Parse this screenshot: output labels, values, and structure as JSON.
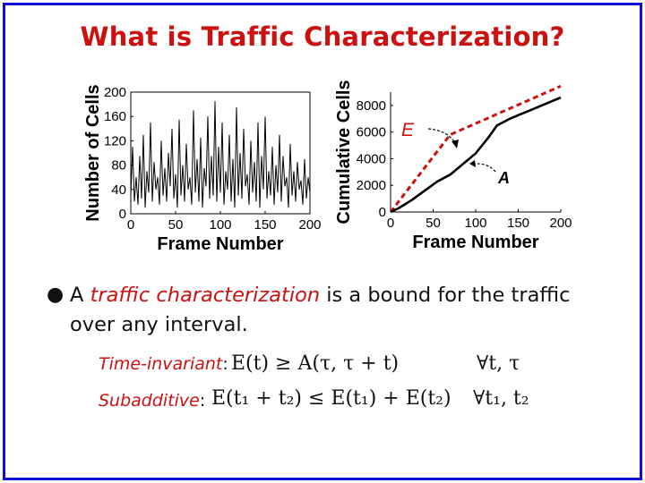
{
  "title": "What is Traffic Characterization?",
  "chart_data": [
    {
      "type": "line",
      "xlabel": "Frame Number",
      "ylabel": "Number of Cells",
      "xticks": [
        "0",
        "50",
        "100",
        "150",
        "200"
      ],
      "yticks": [
        "0",
        "40",
        "80",
        "120",
        "160",
        "200"
      ],
      "xlim": [
        0,
        200
      ],
      "ylim": [
        0,
        200
      ],
      "series": [
        {
          "color": "#000000",
          "x": [
            0,
            2,
            4,
            6,
            8,
            10,
            12,
            14,
            16,
            18,
            20,
            22,
            24,
            26,
            28,
            30,
            32,
            34,
            36,
            38,
            40,
            42,
            44,
            46,
            48,
            50,
            52,
            54,
            56,
            58,
            60,
            62,
            64,
            66,
            68,
            70,
            72,
            74,
            76,
            78,
            80,
            82,
            84,
            86,
            88,
            90,
            92,
            94,
            96,
            98,
            100,
            102,
            104,
            106,
            108,
            110,
            112,
            114,
            116,
            118,
            120,
            122,
            124,
            126,
            128,
            130,
            132,
            134,
            136,
            138,
            140,
            142,
            144,
            146,
            148,
            150,
            152,
            154,
            156,
            158,
            160,
            162,
            164,
            166,
            168,
            170,
            172,
            174,
            176,
            178,
            180,
            182,
            184,
            186,
            188,
            190,
            192,
            194,
            196,
            198,
            200
          ],
          "values": [
            30,
            110,
            20,
            60,
            15,
            95,
            25,
            130,
            10,
            70,
            35,
            150,
            20,
            85,
            40,
            60,
            15,
            120,
            30,
            75,
            20,
            100,
            45,
            140,
            25,
            65,
            10,
            155,
            30,
            80,
            20,
            115,
            40,
            60,
            15,
            170,
            35,
            90,
            20,
            125,
            10,
            75,
            45,
            160,
            25,
            95,
            30,
            185,
            20,
            110,
            35,
            150,
            15,
            70,
            40,
            130,
            20,
            90,
            10,
            175,
            30,
            100,
            25,
            140,
            45,
            65,
            15,
            120,
            35,
            85,
            20,
            150,
            10,
            95,
            40,
            160,
            25,
            70,
            30,
            110,
            15,
            80,
            35,
            130,
            20,
            95,
            45,
            60,
            10,
            115,
            30,
            70,
            20,
            85,
            40,
            55,
            15,
            90,
            25,
            60,
            35
          ]
        }
      ]
    },
    {
      "type": "line",
      "xlabel": "Frame Number",
      "ylabel": "Cumulative Cells",
      "xticks": [
        "0",
        "50",
        "100",
        "150",
        "200"
      ],
      "yticks": [
        "0",
        "2000",
        "4000",
        "6000",
        "8000"
      ],
      "xlim": [
        0,
        200
      ],
      "ylim": [
        0,
        9000
      ],
      "annotations": [
        "E",
        "A"
      ],
      "series": [
        {
          "name": "E",
          "color": "#cc1111",
          "dashed": true,
          "x": [
            0,
            70,
            200
          ],
          "values": [
            0,
            5800,
            9500
          ]
        },
        {
          "name": "A",
          "color": "#000000",
          "dashed": false,
          "x": [
            0,
            10,
            25,
            40,
            55,
            70,
            85,
            100,
            115,
            125,
            140,
            155,
            170,
            185,
            200
          ],
          "values": [
            0,
            300,
            900,
            1600,
            2300,
            2800,
            3600,
            4400,
            5600,
            6500,
            7000,
            7400,
            7800,
            8200,
            8600
          ]
        }
      ]
    }
  ],
  "bullet": {
    "lead": "A",
    "emph": "traffic characterization",
    "rest": "is a bound for the traffic over any interval."
  },
  "properties": [
    {
      "name": "Time-invariant",
      "colon": ":",
      "formula": "E(t) ≥ A(τ, τ + t)",
      "quantifier": "∀t, τ"
    },
    {
      "name": "Subadditive",
      "colon": ":",
      "formula": "E(t₁ + t₂) ≤ E(t₁) + E(t₂)",
      "quantifier": "∀t₁, t₂"
    }
  ]
}
